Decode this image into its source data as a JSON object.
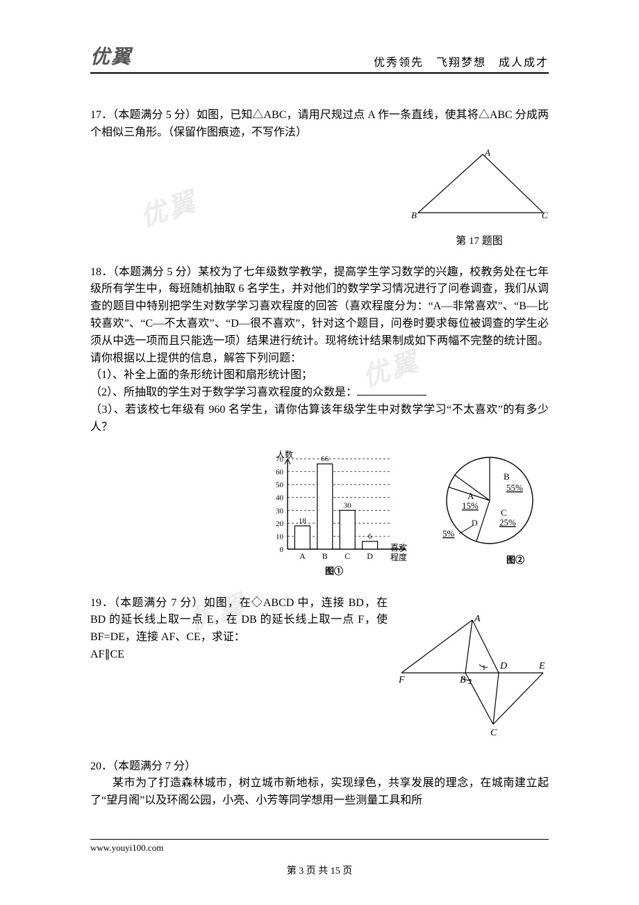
{
  "header": {
    "logo": "优翼",
    "tagline": "优秀领先　飞翔梦想　成人成才"
  },
  "q17": {
    "number": "17．",
    "points": "（本题满分 5 分）",
    "body": "如图，已知△ABC，请用尺规过点 A 作一条直线，使其将△ABC 分成两个相似三角形。（保留作图痕迹，不写作法）",
    "figure_caption": "第 17 题图",
    "triangle": {
      "A_label": "A",
      "B_label": "B",
      "C_label": "C",
      "stroke": "#000000"
    }
  },
  "q18": {
    "number": "18．",
    "points": "（本题满分 5 分）",
    "body": "某校为了七年级数学教学，提高学生学习数学的兴趣，校教务处在七年级所有学生中，每班随机抽取 6 名学生，并对他们的数学学习情况进行了问卷调查，我们从调查的题目中特别把学生对数学学习喜欢程度的回答（喜欢程度分为：“A—非常喜欢”、“B—比较喜欢”、“C—不太喜欢”、“D—很不喜欢”，针对这个题目，问卷时要求每位被调查的学生必须从中选一项而且只能选一项）结果进行统计。现将统计结果制成如下两幅不完整的统计图。请你根据以上提供的信息，解答下列问题：",
    "sub1": "（1）、补全上面的条形统计图和扇形统计图；",
    "sub2_prefix": "（2）、所抽取的学生对于数学学习喜欢程度的众数是：",
    "sub3": "（3）、若该校七年级有 960 名学生，请你估算该年级学生中对数学学习“不太喜欢”的有多少人？",
    "bar_chart": {
      "y_label": "人数",
      "categories": [
        "A",
        "B",
        "C",
        "D"
      ],
      "values": [
        18,
        66,
        30,
        6
      ],
      "y_ticks": [
        0,
        10,
        20,
        30,
        40,
        50,
        60,
        70
      ],
      "x_label": "喜欢\n程度",
      "caption": "图①",
      "bar_color": "#ffffff",
      "bar_stroke": "#000000",
      "grid_dash": "3,3"
    },
    "pie_chart": {
      "slices": [
        {
          "label": "A",
          "pct": "15%",
          "value": 15
        },
        {
          "label": "B",
          "pct": "55%",
          "value": 55
        },
        {
          "label": "C",
          "pct": "25%",
          "value": 25
        },
        {
          "label": "D",
          "pct": "5%",
          "value": 5
        }
      ],
      "caption": "图②",
      "stroke": "#000000",
      "fill": "#ffffff"
    }
  },
  "q19": {
    "number": "19．",
    "points": "（本题满分 7 分）",
    "body": "如图，在◇ABCD 中，连接 BD，在 BD 的延长线上取一点 E，在 DB 的延长线上取一点 F，使 BF=DE，连接 AF、CE，求证：",
    "body2": "AF∥CE",
    "figure": {
      "labels": {
        "A": "A",
        "B": "B",
        "C": "C",
        "D": "D",
        "E": "E",
        "F": "F",
        "ang1": "1",
        "ang2": "2"
      },
      "stroke": "#000000"
    }
  },
  "q20": {
    "number": "20．",
    "points": "（本题满分 7 分）",
    "body": "某市为了打造森林城市，树立城市新地标，实现绿色，共享发展的理念，在城南建立起了“望月阁”以及环阁公园，小亮、小芳等同学想用一些测量工具和所"
  },
  "footer": {
    "url": "www.youyi100.com",
    "pager": "第 3 页 共 15 页"
  },
  "watermarks": [
    "优翼",
    "优翼",
    "优翼"
  ]
}
